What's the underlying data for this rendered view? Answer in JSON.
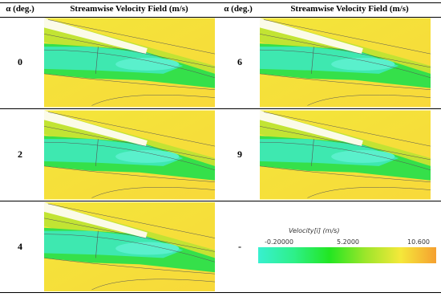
{
  "table": {
    "header": [
      "α (deg.)",
      "Streamwise Velocity Field (m/s)",
      "α (deg.)",
      "Streamwise Velocity Field (m/s)"
    ],
    "rows": [
      [
        "0",
        "6"
      ],
      [
        "2",
        "9"
      ],
      [
        "4",
        "-"
      ]
    ]
  },
  "legend": {
    "title": "Velocity[i] (m/s)",
    "ticks": [
      "-0.20000",
      "5.2000",
      "10.600"
    ]
  }
}
